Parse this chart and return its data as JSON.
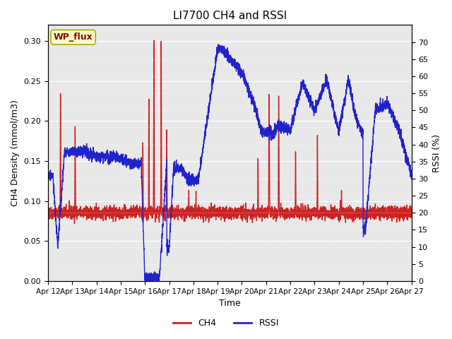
{
  "title": "LI7700 CH4 and RSSI",
  "xlabel": "Time",
  "ylabel_left": "CH4 Density (mmol/m3)",
  "ylabel_right": "RSSI (%)",
  "site_label": "WP_flux",
  "ylim_left": [
    0.0,
    0.32
  ],
  "ylim_right": [
    0,
    75
  ],
  "yticks_left": [
    0.0,
    0.05,
    0.1,
    0.15,
    0.2,
    0.25,
    0.3
  ],
  "yticks_right": [
    0,
    5,
    10,
    15,
    20,
    25,
    30,
    35,
    40,
    45,
    50,
    55,
    60,
    65,
    70
  ],
  "xtick_labels": [
    "Apr 12",
    "Apr 13",
    "Apr 14",
    "Apr 15",
    "Apr 16",
    "Apr 17",
    "Apr 18",
    "Apr 19",
    "Apr 20",
    "Apr 21",
    "Apr 22",
    "Apr 23",
    "Apr 24",
    "Apr 25",
    "Apr 26",
    "Apr 27"
  ],
  "bg_color": "#e8e8e8",
  "ch4_color": "#cc2222",
  "rssi_color": "#2222cc",
  "line_width": 1.0,
  "legend_ch4": "CH4",
  "legend_rssi": "RSSI"
}
